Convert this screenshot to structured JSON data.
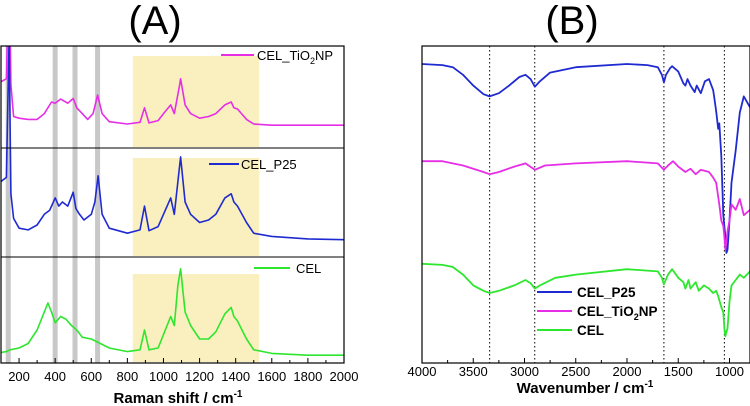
{
  "panels": {
    "A": {
      "label": "(A)",
      "xlabel": "Raman shift / cm",
      "xlabel_sup": "-1",
      "xlim": [
        100,
        2000
      ],
      "xticks": [
        200,
        400,
        600,
        800,
        1000,
        1200,
        1400,
        1600,
        1800,
        2000
      ],
      "highlight_band": [
        830,
        1530
      ],
      "vertical_lines": [
        140,
        400,
        510,
        635
      ]
    },
    "B": {
      "label": "(B)",
      "xlabel": "Wavenumber / cm",
      "xlabel_sup": "-1",
      "xlim": [
        4000,
        800
      ],
      "xticks": [
        4000,
        3500,
        3000,
        2500,
        2000,
        1500,
        1000
      ],
      "dotted_lines": [
        3340,
        2900,
        1640,
        1050
      ]
    }
  },
  "colors": {
    "magenta": "#e62ee6",
    "blue": "#1f2bd1",
    "green": "#2ee62e",
    "grey": "#c8c8c8",
    "band": "#faefbe"
  },
  "chart_data": [
    {
      "type": "line",
      "title": "(A)",
      "xlabel": "Raman shift / cm-1",
      "ylabel": "",
      "xlim": [
        100,
        2000
      ],
      "series": [
        {
          "name": "CEL_TiO2NP",
          "name_base": "CEL_TiO",
          "name_sub": "2",
          "name_tail": "NP",
          "color": "#e62ee6",
          "x": [
            100,
            130,
            145,
            155,
            170,
            200,
            250,
            300,
            340,
            380,
            400,
            430,
            470,
            500,
            520,
            550,
            580,
            610,
            635,
            660,
            700,
            800,
            870,
            895,
            920,
            970,
            1000,
            1040,
            1060,
            1090,
            1095,
            1120,
            1150,
            1200,
            1250,
            1290,
            1340,
            1375,
            1390,
            1410,
            1460,
            1500,
            1600,
            1800,
            2000
          ],
          "y": [
            0.85,
            0.9,
            3.0,
            0.8,
            0.25,
            0.22,
            0.2,
            0.2,
            0.3,
            0.5,
            0.48,
            0.55,
            0.48,
            0.56,
            0.4,
            0.3,
            0.2,
            0.3,
            0.62,
            0.3,
            0.16,
            0.12,
            0.15,
            0.4,
            0.14,
            0.18,
            0.3,
            0.45,
            0.3,
            0.8,
            0.9,
            0.45,
            0.3,
            0.22,
            0.25,
            0.3,
            0.45,
            0.5,
            0.4,
            0.38,
            0.2,
            0.12,
            0.1,
            0.1,
            0.1
          ]
        },
        {
          "name": "CEL_P25",
          "color": "#1f2bd1",
          "x": [
            100,
            130,
            145,
            155,
            170,
            200,
            250,
            300,
            340,
            370,
            400,
            420,
            440,
            470,
            500,
            515,
            535,
            560,
            600,
            620,
            638,
            660,
            700,
            800,
            870,
            895,
            920,
            970,
            1000,
            1040,
            1060,
            1090,
            1095,
            1120,
            1150,
            1200,
            1250,
            1290,
            1340,
            1375,
            1390,
            1410,
            1460,
            1500,
            1600,
            1800,
            2000
          ],
          "y": [
            0.75,
            0.8,
            2.5,
            0.6,
            0.3,
            0.18,
            0.16,
            0.22,
            0.35,
            0.4,
            0.55,
            0.45,
            0.5,
            0.45,
            0.62,
            0.42,
            0.35,
            0.28,
            0.35,
            0.5,
            0.82,
            0.35,
            0.18,
            0.12,
            0.16,
            0.45,
            0.15,
            0.2,
            0.35,
            0.55,
            0.35,
            0.95,
            1.05,
            0.5,
            0.35,
            0.25,
            0.28,
            0.35,
            0.55,
            0.6,
            0.5,
            0.45,
            0.25,
            0.12,
            0.08,
            0.05,
            0.04
          ]
        },
        {
          "name": "CEL",
          "color": "#2ee62e",
          "x": [
            100,
            130,
            150,
            200,
            250,
            300,
            330,
            360,
            380,
            400,
            430,
            460,
            490,
            520,
            550,
            600,
            700,
            800,
            870,
            895,
            920,
            970,
            1000,
            1040,
            1060,
            1080,
            1095,
            1120,
            1150,
            1200,
            1250,
            1290,
            1340,
            1375,
            1390,
            1410,
            1460,
            1500,
            1600,
            1800,
            2000
          ],
          "y": [
            0.05,
            0.06,
            0.08,
            0.1,
            0.15,
            0.3,
            0.45,
            0.6,
            0.5,
            0.38,
            0.45,
            0.42,
            0.35,
            0.3,
            0.22,
            0.2,
            0.1,
            0.06,
            0.08,
            0.3,
            0.08,
            0.1,
            0.25,
            0.45,
            0.35,
            0.8,
            0.98,
            0.5,
            0.35,
            0.2,
            0.2,
            0.28,
            0.48,
            0.55,
            0.45,
            0.4,
            0.2,
            0.08,
            0.04,
            0.02,
            0.02
          ]
        }
      ]
    },
    {
      "type": "line",
      "title": "(B)",
      "xlabel": "Wavenumber / cm-1",
      "ylabel": "",
      "xlim": [
        4000,
        800
      ],
      "series": [
        {
          "name": "CEL_P25",
          "color": "#1f2bd1",
          "x": [
            4000,
            3800,
            3700,
            3600,
            3500,
            3400,
            3340,
            3250,
            3150,
            3050,
            2990,
            2940,
            2900,
            2850,
            2750,
            2500,
            2000,
            1800,
            1700,
            1660,
            1640,
            1620,
            1580,
            1560,
            1500,
            1450,
            1430,
            1410,
            1380,
            1340,
            1320,
            1280,
            1240,
            1200,
            1160,
            1150,
            1130,
            1110,
            1100,
            1080,
            1060,
            1040,
            1030,
            1020,
            1000,
            980,
            940,
            900,
            860,
            800
          ],
          "y": [
            1.0,
            0.99,
            0.97,
            0.9,
            0.8,
            0.72,
            0.7,
            0.73,
            0.8,
            0.88,
            0.9,
            0.86,
            0.79,
            0.84,
            0.92,
            0.97,
            1.0,
            0.99,
            0.97,
            0.9,
            0.83,
            0.9,
            0.96,
            0.98,
            0.93,
            0.82,
            0.8,
            0.86,
            0.8,
            0.74,
            0.8,
            0.73,
            0.84,
            0.86,
            0.76,
            0.7,
            0.56,
            0.4,
            0.45,
            0.15,
            -0.4,
            -0.6,
            -0.75,
            -0.72,
            -0.45,
            -0.1,
            0.2,
            0.55,
            0.7,
            0.6
          ]
        },
        {
          "name": "CEL_TiO2NP",
          "name_base": "CEL_TiO",
          "name_sub": "2",
          "name_tail": "NP",
          "color": "#e62ee6",
          "x": [
            4000,
            3800,
            3600,
            3400,
            3340,
            3250,
            3100,
            2990,
            2900,
            2800,
            2500,
            2000,
            1700,
            1640,
            1600,
            1550,
            1500,
            1430,
            1380,
            1330,
            1280,
            1200,
            1160,
            1130,
            1100,
            1080,
            1060,
            1050,
            1040,
            1030,
            1020,
            1000,
            980,
            940,
            900,
            860,
            800
          ],
          "y": [
            0.1,
            0.1,
            0.06,
            0.0,
            -0.02,
            0.0,
            0.05,
            0.08,
            0.02,
            0.06,
            0.08,
            0.1,
            0.08,
            0.02,
            0.06,
            0.1,
            0.05,
            0.0,
            0.03,
            -0.02,
            0.02,
            0.0,
            -0.05,
            -0.1,
            -0.3,
            -0.45,
            -0.5,
            -0.6,
            -0.72,
            -0.65,
            -0.55,
            -0.45,
            -0.3,
            -0.35,
            -0.25,
            -0.4,
            -0.35
          ]
        },
        {
          "name": "CEL",
          "color": "#2ee62e",
          "x": [
            4000,
            3800,
            3700,
            3600,
            3500,
            3400,
            3340,
            3250,
            3100,
            2990,
            2940,
            2900,
            2850,
            2700,
            2500,
            2000,
            1700,
            1660,
            1640,
            1600,
            1560,
            1500,
            1450,
            1430,
            1400,
            1380,
            1330,
            1300,
            1250,
            1200,
            1160,
            1130,
            1110,
            1080,
            1060,
            1050,
            1040,
            1030,
            1020,
            1000,
            980,
            940,
            900,
            860,
            800
          ],
          "y": [
            -0.85,
            -0.86,
            -0.88,
            -0.95,
            -1.05,
            -1.1,
            -1.12,
            -1.1,
            -1.05,
            -1.0,
            -1.03,
            -1.08,
            -1.05,
            -0.98,
            -0.95,
            -0.9,
            -0.92,
            -0.98,
            -1.04,
            -0.95,
            -0.9,
            -0.98,
            -1.02,
            -1.08,
            -1.0,
            -1.08,
            -1.02,
            -1.1,
            -1.05,
            -1.08,
            -1.12,
            -1.1,
            -1.15,
            -1.25,
            -1.3,
            -1.45,
            -1.52,
            -1.48,
            -1.45,
            -1.2,
            -1.05,
            -1.0,
            -0.95,
            -0.98,
            -0.92
          ]
        }
      ]
    }
  ]
}
